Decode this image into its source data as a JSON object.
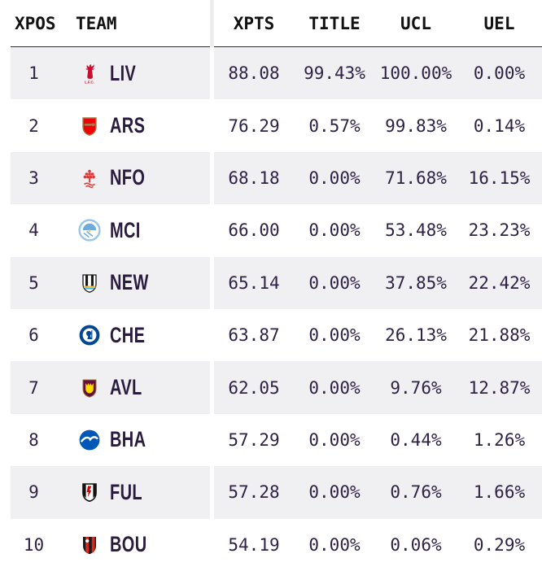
{
  "table": {
    "headers": {
      "xpos": "XPOS",
      "team": "TEAM",
      "xpts": "XPTS",
      "title": "TITLE",
      "ucl": "UCL",
      "uel": "UEL"
    },
    "rows": [
      {
        "pos": "1",
        "team": "LIV",
        "xpts": "88.08",
        "title": "99.43%",
        "ucl": "100.00%",
        "uel": "0.00%",
        "badge": {
          "name": "liverpool-crest",
          "kind": "LIV",
          "primary": "#C8102E",
          "secondary": "#C8102E",
          "accent": "#ffffff"
        }
      },
      {
        "pos": "2",
        "team": "ARS",
        "xpts": "76.29",
        "title": "0.57%",
        "ucl": "99.83%",
        "uel": "0.14%",
        "badge": {
          "name": "arsenal-crest",
          "kind": "ARS",
          "primary": "#EF0107",
          "secondary": "#9C824A",
          "accent": "#ffffff"
        }
      },
      {
        "pos": "3",
        "team": "NFO",
        "xpts": "68.18",
        "title": "0.00%",
        "ucl": "71.68%",
        "uel": "16.15%",
        "badge": {
          "name": "nottingham-forest-crest",
          "kind": "NFO",
          "primary": "#E53233",
          "secondary": "#E53233",
          "accent": "#ffffff"
        }
      },
      {
        "pos": "4",
        "team": "MCI",
        "xpts": "66.00",
        "title": "0.00%",
        "ucl": "53.48%",
        "uel": "23.23%",
        "badge": {
          "name": "man-city-crest",
          "kind": "MCI",
          "primary": "#98C5E9",
          "secondary": "#6CABDD",
          "accent": "#FFC659"
        }
      },
      {
        "pos": "5",
        "team": "NEW",
        "xpts": "65.14",
        "title": "0.00%",
        "ucl": "37.85%",
        "uel": "22.42%",
        "badge": {
          "name": "newcastle-crest",
          "kind": "NEW",
          "primary": "#1a1a1a",
          "secondary": "#F1BE48",
          "accent": "#41B6E6"
        }
      },
      {
        "pos": "6",
        "team": "CHE",
        "xpts": "63.87",
        "title": "0.00%",
        "ucl": "26.13%",
        "uel": "21.88%",
        "badge": {
          "name": "chelsea-crest",
          "kind": "CHE",
          "primary": "#034694",
          "secondary": "#034694",
          "accent": "#ffffff"
        }
      },
      {
        "pos": "7",
        "team": "AVL",
        "xpts": "62.05",
        "title": "0.00%",
        "ucl": "9.76%",
        "uel": "12.87%",
        "badge": {
          "name": "aston-villa-crest",
          "kind": "AVL",
          "primary": "#670E36",
          "secondary": "#FEDB00",
          "accent": "#94794a"
        }
      },
      {
        "pos": "8",
        "team": "BHA",
        "xpts": "57.29",
        "title": "0.00%",
        "ucl": "0.44%",
        "uel": "1.26%",
        "badge": {
          "name": "brighton-crest",
          "kind": "BHA",
          "primary": "#0057B8",
          "secondary": "#ffffff",
          "accent": "#ffffff"
        }
      },
      {
        "pos": "9",
        "team": "FUL",
        "xpts": "57.28",
        "title": "0.00%",
        "ucl": "0.76%",
        "uel": "1.66%",
        "badge": {
          "name": "fulham-crest",
          "kind": "FUL",
          "primary": "#d40000",
          "secondary": "#111111",
          "accent": "#ffffff"
        }
      },
      {
        "pos": "10",
        "team": "BOU",
        "xpts": "54.19",
        "title": "0.00%",
        "ucl": "0.06%",
        "uel": "0.29%",
        "badge": {
          "name": "bournemouth-crest",
          "kind": "BOU",
          "primary": "#DA291C",
          "secondary": "#1a1a1a",
          "accent": "#ffffff"
        }
      }
    ]
  },
  "colors": {
    "stripe": "#f0eff1",
    "value_text": "#2e2245",
    "header_text": "#121212",
    "header_underline": "#2e2245",
    "background": "#ffffff"
  }
}
